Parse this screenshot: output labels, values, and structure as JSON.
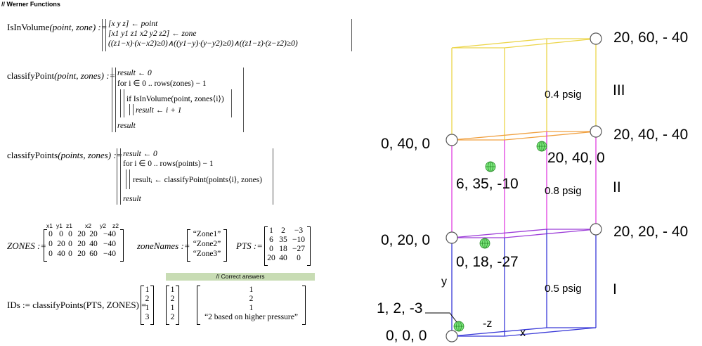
{
  "header": {
    "title": "// Werner Functions"
  },
  "isInVolume": {
    "name": "IsInVolume",
    "params": "(point, zone) :=",
    "line1": "[x  y  z] ← point",
    "line2": "[x1  y1  z1  x2  y2  z2] ← zone",
    "line3": "((z1−x)·(x−x2)≥0)∧((y1−y)·(y−y2)≥0)∧((z1−z)·(z−z2)≥0)"
  },
  "classifyPoint": {
    "name": "classifyPoint",
    "params": "(point, zones) :=",
    "line1": "result ← 0",
    "line2": "for i ∈ 0 .. rows(zones) − 1",
    "line3": "if IsInVolume(point, zones⟨i⟩)",
    "line4": "result ← i + 1",
    "line5": "result"
  },
  "classifyPoints": {
    "name": "classifyPoints",
    "params": "(points, zones) :=",
    "line1": "result ← 0",
    "line2": "for i ∈ 0 .. rows(points) − 1",
    "line3": "resultᵢ ← classifyPoint(points⟨i⟩, zones)",
    "line4": "result"
  },
  "zones": {
    "label": "ZONES :=",
    "columns": [
      "x1",
      "y1",
      "z1",
      "x2",
      "y2",
      "z2"
    ],
    "rows": [
      [
        "0",
        "0",
        "0",
        "20",
        "20",
        "−40"
      ],
      [
        "0",
        "20",
        "0",
        "20",
        "40",
        "−40"
      ],
      [
        "0",
        "40",
        "0",
        "20",
        "60",
        "−40"
      ]
    ]
  },
  "zoneNames": {
    "label": "zoneNames :=",
    "values": [
      "“Zone1”",
      "“Zone2”",
      "“Zone3”"
    ]
  },
  "pts": {
    "label": "PTS :=",
    "rows": [
      [
        "1",
        "2",
        "−3"
      ],
      [
        "6",
        "35",
        "−10"
      ],
      [
        "0",
        "18",
        "−27"
      ],
      [
        "20",
        "40",
        "0"
      ]
    ]
  },
  "banner": {
    "text": "// Correct answers"
  },
  "ids": {
    "expression": "IDs := classifyPoints(PTS, ZONES) =",
    "result": [
      "1",
      "2",
      "1",
      "3"
    ],
    "correct": [
      "1",
      "2",
      "1",
      "2"
    ],
    "notes": [
      "1",
      "2",
      "1",
      "“2 based on higher pressure”"
    ]
  },
  "diagram": {
    "corner_labels": {
      "top_back": "20, 60, - 40",
      "mid_back": "20, 40, - 40",
      "low_back": "20, 20, - 40",
      "front_40": "0, 40, 0",
      "front_20": "0, 20, 0",
      "origin": "0, 0, 0"
    },
    "point_labels": {
      "p_20_40_0": "20, 40, 0",
      "p_6_35_-10": "6, 35, -10",
      "p_0_18_-27": "0, 18, -27",
      "p_1_2_-3": "1, 2, -3"
    },
    "pressures": {
      "zone3": "0.4 psig",
      "zone2": "0.8 psig",
      "zone1": "0.5 psig"
    },
    "zone_numerals": {
      "zone3": "III",
      "zone2": "II",
      "zone1": "I"
    },
    "axes": {
      "y": "y",
      "z": "-z",
      "x": "x"
    },
    "colors": {
      "zone1": "#3a3ad8",
      "zone2": "#e040e0",
      "zone3": "#ecd54a",
      "zone12_boundary": "#9c3cd8",
      "zone23_boundary": "#f0a040",
      "point_fill": "#7ce87c"
    }
  }
}
